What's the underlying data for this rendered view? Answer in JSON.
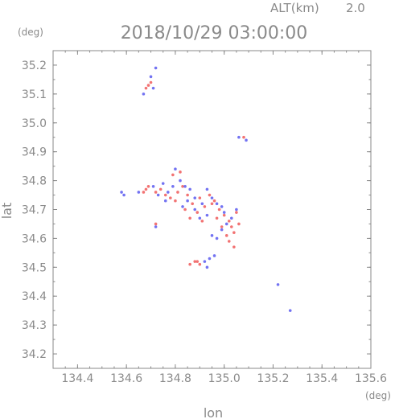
{
  "header": {
    "altitude_label": "ALT(km)",
    "altitude_value": "2.0",
    "timestamp": "2018/10/29 03:00:00"
  },
  "chart_data": {
    "type": "scatter",
    "title": "2018/10/29 03:00:00",
    "xlabel": "lon",
    "ylabel": "lat",
    "x_unit": "(deg)",
    "y_unit": "(deg)",
    "xlim": [
      134.3,
      135.6
    ],
    "ylim": [
      34.15,
      35.25
    ],
    "x_ticks": [
      134.4,
      134.6,
      134.8,
      135.0,
      135.2,
      135.4,
      135.6
    ],
    "x_tick_labels": [
      "134.4",
      "134.6",
      "134.8",
      "135.0",
      "135.2",
      "135.4",
      "135.6"
    ],
    "y_ticks": [
      34.2,
      34.3,
      34.4,
      34.5,
      34.6,
      34.7,
      34.8,
      34.9,
      35.0,
      35.1,
      35.2
    ],
    "y_tick_labels": [
      "34.2",
      "34.3",
      "34.4",
      "34.5",
      "34.6",
      "34.7",
      "34.8",
      "34.9",
      "35.0",
      "35.1",
      "35.2"
    ],
    "grid": false,
    "series": [
      {
        "color": "#f05a5a",
        "points": [
          [
            134.69,
            35.13
          ],
          [
            134.7,
            35.14
          ],
          [
            134.68,
            35.12
          ],
          [
            134.68,
            34.77
          ],
          [
            134.67,
            34.76
          ],
          [
            134.69,
            34.78
          ],
          [
            134.72,
            34.76
          ],
          [
            134.74,
            34.77
          ],
          [
            134.76,
            34.75
          ],
          [
            134.78,
            34.74
          ],
          [
            134.8,
            34.73
          ],
          [
            134.81,
            34.76
          ],
          [
            134.83,
            34.78
          ],
          [
            134.85,
            34.75
          ],
          [
            134.87,
            34.72
          ],
          [
            134.89,
            34.69
          ],
          [
            134.9,
            34.74
          ],
          [
            134.92,
            34.71
          ],
          [
            134.94,
            34.75
          ],
          [
            134.96,
            34.73
          ],
          [
            134.98,
            34.7
          ],
          [
            134.97,
            34.67
          ],
          [
            135.0,
            34.68
          ],
          [
            135.02,
            34.66
          ],
          [
            135.03,
            34.64
          ],
          [
            135.04,
            34.62
          ],
          [
            134.99,
            34.64
          ],
          [
            135.01,
            34.61
          ],
          [
            135.02,
            34.59
          ],
          [
            135.04,
            34.57
          ],
          [
            134.72,
            34.65
          ],
          [
            134.79,
            34.82
          ],
          [
            134.82,
            34.83
          ],
          [
            134.88,
            34.52
          ],
          [
            134.9,
            34.51
          ],
          [
            134.89,
            34.52
          ],
          [
            134.86,
            34.51
          ],
          [
            134.95,
            34.72
          ],
          [
            134.84,
            34.7
          ],
          [
            134.86,
            34.67
          ],
          [
            134.91,
            34.66
          ],
          [
            135.05,
            34.69
          ],
          [
            135.06,
            34.65
          ],
          [
            135.08,
            34.95
          ]
        ]
      },
      {
        "color": "#5a5af0",
        "points": [
          [
            134.72,
            35.19
          ],
          [
            134.7,
            35.16
          ],
          [
            134.67,
            35.1
          ],
          [
            134.71,
            35.12
          ],
          [
            134.58,
            34.76
          ],
          [
            134.59,
            34.75
          ],
          [
            134.65,
            34.76
          ],
          [
            134.71,
            34.78
          ],
          [
            134.73,
            34.75
          ],
          [
            134.75,
            34.79
          ],
          [
            134.77,
            34.76
          ],
          [
            134.79,
            34.78
          ],
          [
            134.82,
            34.8
          ],
          [
            134.84,
            34.78
          ],
          [
            134.86,
            34.77
          ],
          [
            134.88,
            34.74
          ],
          [
            134.91,
            34.72
          ],
          [
            134.93,
            34.77
          ],
          [
            134.95,
            34.74
          ],
          [
            134.97,
            34.72
          ],
          [
            134.99,
            34.71
          ],
          [
            135.0,
            34.69
          ],
          [
            135.01,
            34.65
          ],
          [
            135.03,
            34.67
          ],
          [
            134.95,
            34.61
          ],
          [
            134.97,
            34.6
          ],
          [
            134.99,
            34.63
          ],
          [
            134.92,
            34.52
          ],
          [
            134.94,
            34.53
          ],
          [
            134.96,
            34.54
          ],
          [
            134.93,
            34.5
          ],
          [
            134.83,
            34.71
          ],
          [
            134.85,
            34.73
          ],
          [
            134.88,
            34.7
          ],
          [
            134.9,
            34.67
          ],
          [
            134.76,
            34.73
          ],
          [
            134.8,
            34.84
          ],
          [
            134.72,
            34.64
          ],
          [
            135.06,
            34.95
          ],
          [
            135.09,
            34.94
          ],
          [
            135.22,
            34.44
          ],
          [
            135.27,
            34.35
          ],
          [
            135.05,
            34.7
          ],
          [
            134.93,
            34.68
          ]
        ]
      }
    ]
  }
}
